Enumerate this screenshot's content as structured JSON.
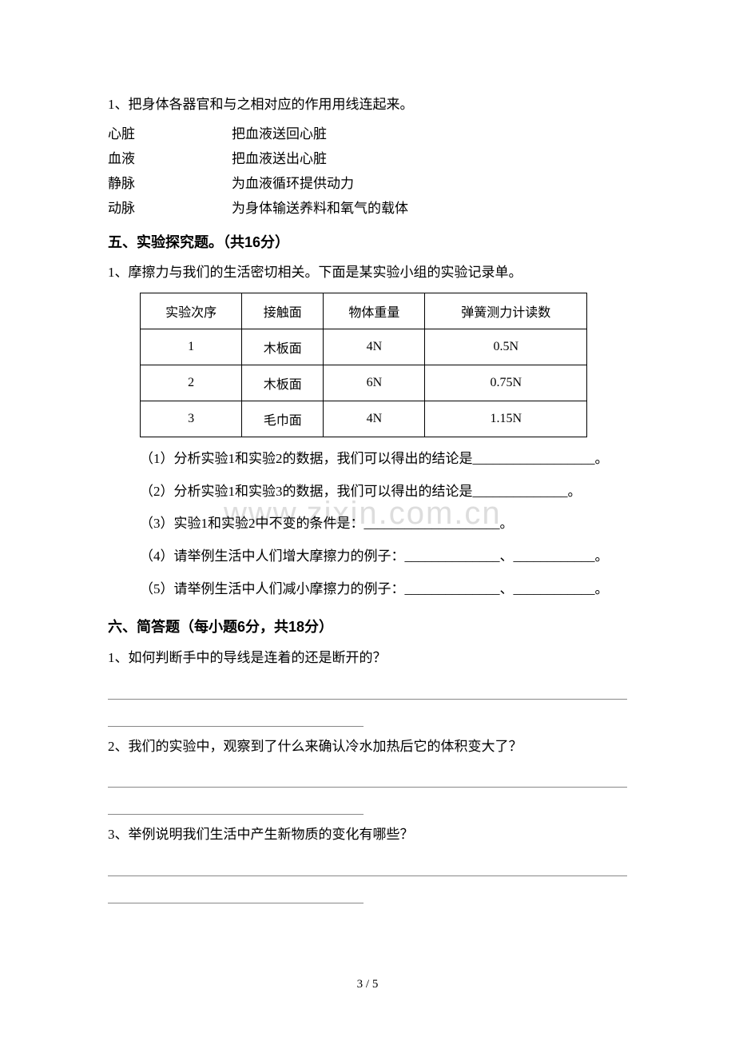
{
  "matching": {
    "instruction": "1、把身体各器官和与之相对应的作用用线连起来。",
    "pairs": [
      {
        "left": "心脏",
        "right": "把血液送回心脏"
      },
      {
        "left": "血液",
        "right": "把血液送出心脏"
      },
      {
        "left": "静脉",
        "right": "为血液循环提供动力"
      },
      {
        "left": "动脉",
        "right": "为身体输送养料和氧气的载体"
      }
    ]
  },
  "section5": {
    "title": "五、实验探究题。（共16分）",
    "q1_intro": "1、摩擦力与我们的生活密切相关。下面是某实验小组的实验记录单。",
    "table": {
      "headers": [
        "实验次序",
        "接触面",
        "物体重量",
        "弹簧测力计读数"
      ],
      "rows": [
        [
          "1",
          "木板面",
          "4N",
          "0.5N"
        ],
        [
          "2",
          "木板面",
          "6N",
          "0.75N"
        ],
        [
          "3",
          "毛巾面",
          "4N",
          "1.15N"
        ]
      ]
    },
    "sub_questions": [
      "（1）分析实验1和实验2的数据，我们可以得出的结论是__________________。",
      "（2）分析实验1和实验3的数据，我们可以得出的结论是______________。",
      "（3）实验1和实验2中不变的条件是：____________________。",
      "（4）请举例生活中人们增大摩擦力的例子：______________、____________。",
      "（5）请举例生活中人们减小摩擦力的例子：______________、____________。"
    ]
  },
  "section6": {
    "title": "六、简答题（每小题6分，共18分）",
    "questions": [
      "1、如何判断手中的导线是连着的还是断开的？",
      "2、我们的实验中，观察到了什么来确认冷水加热后它的体积变大了？",
      "3、举例说明我们生活中产生新物质的变化有哪些？"
    ]
  },
  "watermark": "www.zixin.com.cn",
  "page_number": "3 / 5"
}
